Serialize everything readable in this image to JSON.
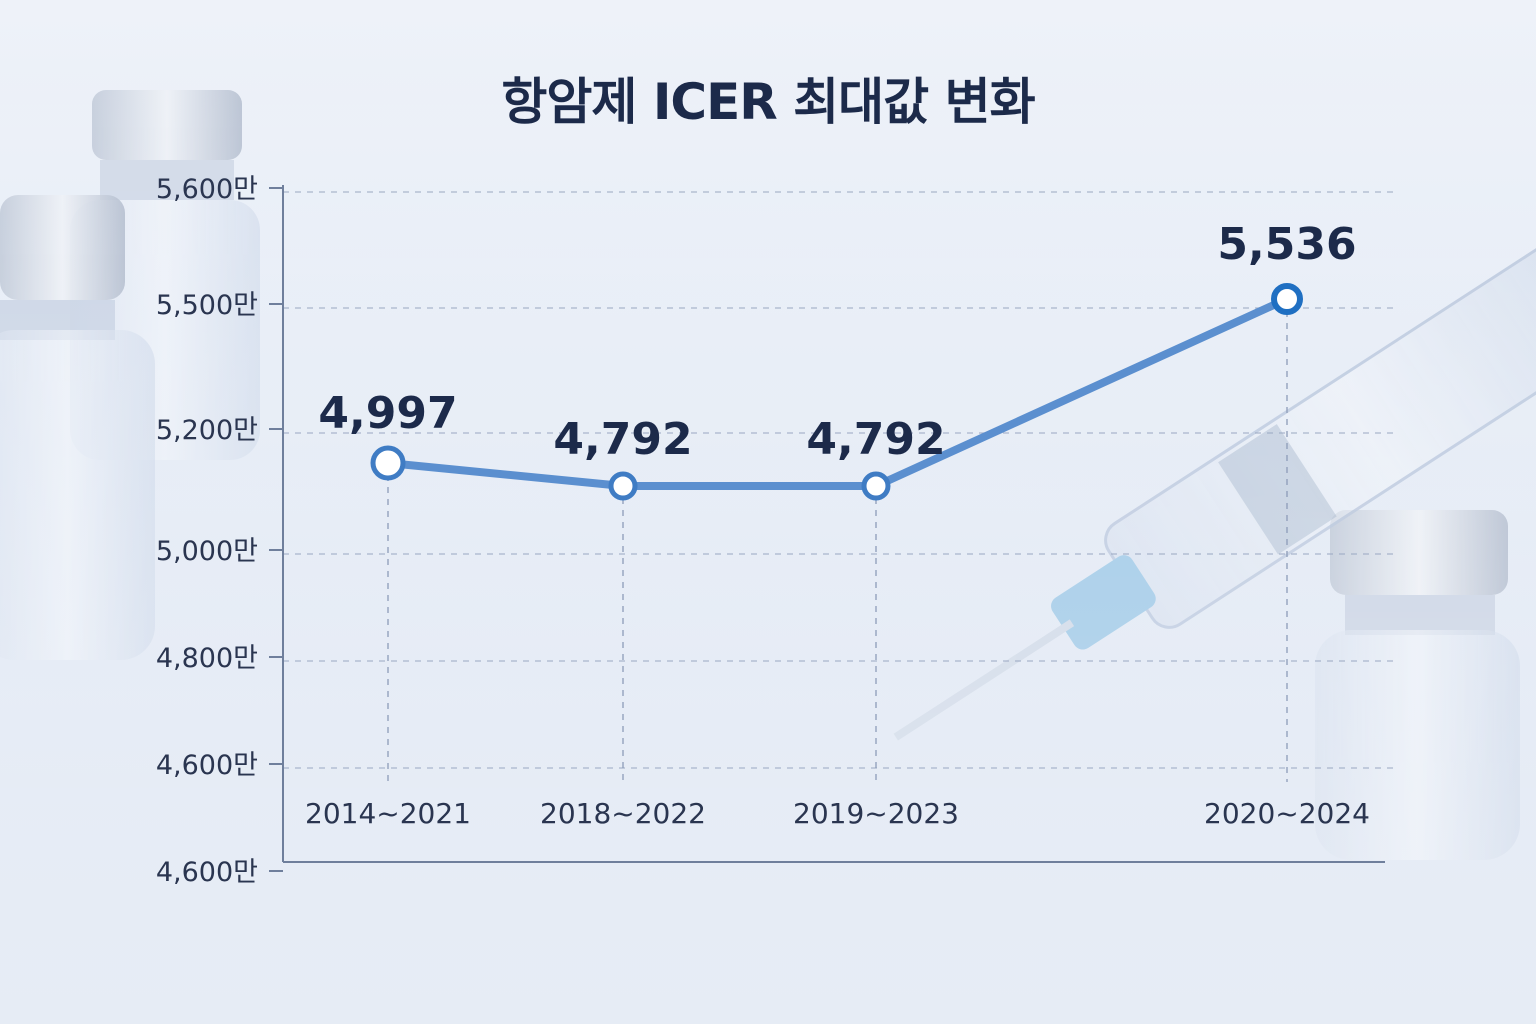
{
  "chart_data": {
    "type": "line",
    "title": "항암제 ICER 최대값 변화",
    "xlabel": "",
    "ylabel": "",
    "categories": [
      "2014~2021",
      "2018~2022",
      "2019~2023",
      "2020~2024"
    ],
    "series": [
      {
        "name": "",
        "values": [
          4997,
          4792,
          4792,
          5536
        ],
        "labels": [
          "4,997",
          "4,792",
          "4,792",
          "5,536"
        ],
        "color": "#5b8fcf"
      }
    ],
    "y_ticks": [
      "5,600만",
      "5,500만",
      "5,200만",
      "5,000만",
      "4,800만",
      "4,600만",
      "4,600만"
    ],
    "grid": true,
    "legend": "none",
    "colors": {
      "line": "#5b8fcf",
      "marker_stroke": "#3f7cc4",
      "highlight_marker": "#1f6fc2",
      "text": "#1c2a4a"
    }
  }
}
